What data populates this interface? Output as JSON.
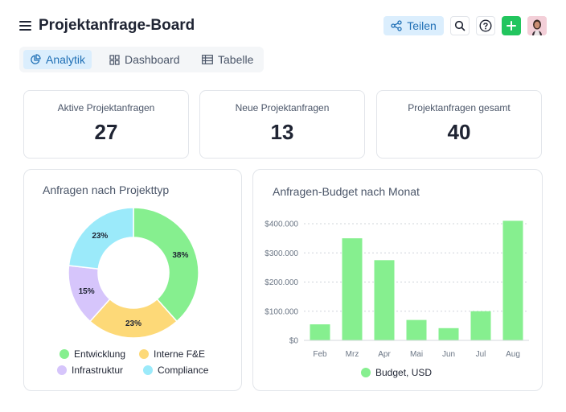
{
  "header": {
    "title": "Projektanfrage-Board",
    "share_label": "Teilen",
    "menu_icon": "hamburger-menu-icon",
    "share_icon": "share-icon",
    "search_icon": "search-icon",
    "help_icon": "question-circle-icon",
    "add_icon": "plus-icon",
    "add_color": "#22c55e"
  },
  "tabs": [
    {
      "label": "Analytik",
      "icon": "pie-chart-icon",
      "active": true
    },
    {
      "label": "Dashboard",
      "icon": "grid-icon",
      "active": false
    },
    {
      "label": "Tabelle",
      "icon": "table-icon",
      "active": false
    }
  ],
  "kpis": [
    {
      "label": "Aktive Projektanfragen",
      "value": "27"
    },
    {
      "label": "Neue Projektanfragen",
      "value": "13"
    },
    {
      "label": "Projektanfragen gesamt",
      "value": "40"
    }
  ],
  "chart_data": [
    {
      "type": "pie",
      "title": "Anfragen nach Projekttyp",
      "donut": true,
      "slices": [
        {
          "label": "Entwicklung",
          "value": 38,
          "display": "38%",
          "color": "#86ef8f"
        },
        {
          "label": "Interne F&E",
          "value": 23,
          "display": "23%",
          "color": "#fdd978"
        },
        {
          "label": "Infrastruktur",
          "value": 15,
          "display": "15%",
          "color": "#d6c5fb"
        },
        {
          "label": "Compliance",
          "value": 23,
          "display": "23%",
          "color": "#9beafa"
        }
      ],
      "legend_position": "bottom"
    },
    {
      "type": "bar",
      "title": "Anfragen-Budget nach Monat",
      "categories": [
        "Feb",
        "Mrz",
        "Apr",
        "Mai",
        "Jun",
        "Jul",
        "Aug"
      ],
      "series": [
        {
          "name": "Budget, USD",
          "values": [
            55000,
            350000,
            275000,
            70000,
            42000,
            100000,
            410000
          ],
          "color": "#86ef8f"
        }
      ],
      "yticks": [
        0,
        100000,
        200000,
        300000,
        400000
      ],
      "ytick_labels": [
        "$0",
        "$100.000",
        "$200.000",
        "$300.000",
        "$400.000"
      ],
      "ylim": [
        0,
        400000
      ],
      "grid": true,
      "legend_position": "bottom"
    }
  ]
}
